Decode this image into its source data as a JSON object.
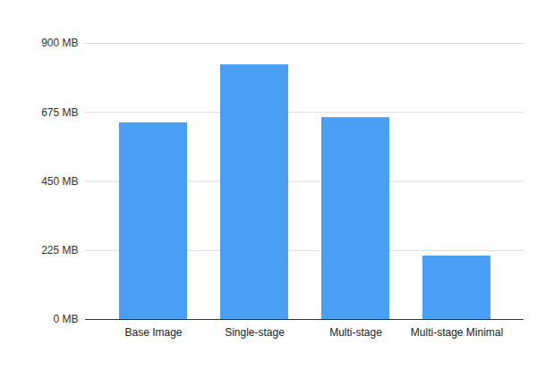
{
  "chart_data": {
    "type": "bar",
    "categories": [
      "Base Image",
      "Single-stage",
      "Multi-stage",
      "Multi-stage Minimal"
    ],
    "values": [
      641,
      830,
      658,
      207
    ],
    "color": "#4a9ff5",
    "ylim": [
      0,
      900
    ],
    "yticks": [
      {
        "value": 0,
        "label": "0 MB"
      },
      {
        "value": 225,
        "label": "225 MB"
      },
      {
        "value": 450,
        "label": "450 MB"
      },
      {
        "value": 675,
        "label": "675 MB"
      },
      {
        "value": 900,
        "label": "900 MB"
      }
    ],
    "grid": true
  }
}
